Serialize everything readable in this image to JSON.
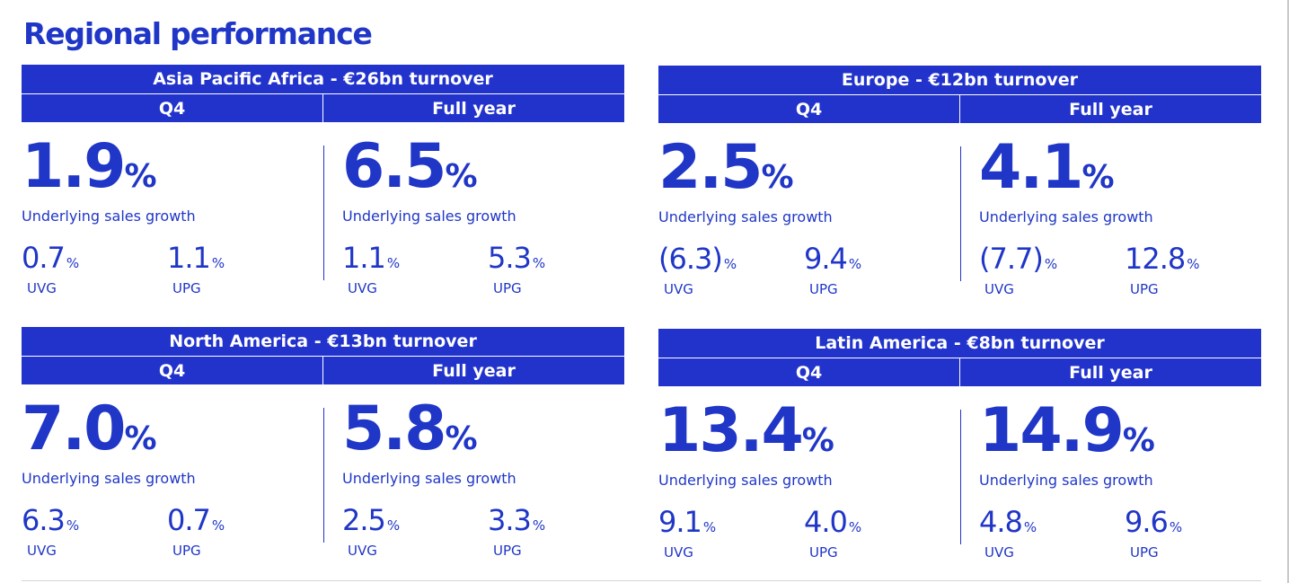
{
  "page_title": "Regional performance",
  "regions": [
    {
      "header": "Asia Pacific Africa - €26bn turnover",
      "columns": [
        {
          "period": "Q4",
          "growth": "1.9",
          "growth_label": "Underlying sales growth",
          "metrics": [
            {
              "value": "0.7",
              "label": "UVG"
            },
            {
              "value": "1.1",
              "label": "UPG"
            }
          ]
        },
        {
          "period": "Full year",
          "growth": "6.5",
          "growth_label": "Underlying sales growth",
          "metrics": [
            {
              "value": "1.1",
              "label": "UVG"
            },
            {
              "value": "5.3",
              "label": "UPG"
            }
          ]
        }
      ]
    },
    {
      "header": "Europe - €12bn turnover",
      "columns": [
        {
          "period": "Q4",
          "growth": "2.5",
          "growth_label": "Underlying sales growth",
          "metrics": [
            {
              "value": "(6.3)",
              "label": "UVG"
            },
            {
              "value": "9.4",
              "label": "UPG"
            }
          ]
        },
        {
          "period": "Full year",
          "growth": "4.1",
          "growth_label": "Underlying sales growth",
          "metrics": [
            {
              "value": "(7.7)",
              "label": "UVG"
            },
            {
              "value": "12.8",
              "label": "UPG"
            }
          ]
        }
      ]
    },
    {
      "header": "North America - €13bn turnover",
      "columns": [
        {
          "period": "Q4",
          "growth": "7.0",
          "growth_label": "Underlying sales growth",
          "metrics": [
            {
              "value": "6.3",
              "label": "UVG"
            },
            {
              "value": "0.7",
              "label": "UPG"
            }
          ]
        },
        {
          "period": "Full year",
          "growth": "5.8",
          "growth_label": "Underlying sales growth",
          "metrics": [
            {
              "value": "2.5",
              "label": "UVG"
            },
            {
              "value": "3.3",
              "label": "UPG"
            }
          ]
        }
      ]
    },
    {
      "header": "Latin America - €8bn turnover",
      "columns": [
        {
          "period": "Q4",
          "growth": "13.4",
          "growth_label": "Underlying sales growth",
          "metrics": [
            {
              "value": "9.1",
              "label": "UVG"
            },
            {
              "value": "4.0",
              "label": "UPG"
            }
          ]
        },
        {
          "period": "Full year",
          "growth": "14.9",
          "growth_label": "Underlying sales growth",
          "metrics": [
            {
              "value": "4.8",
              "label": "UVG"
            },
            {
              "value": "9.6",
              "label": "UPG"
            }
          ]
        }
      ]
    }
  ],
  "percent_sign": "%",
  "colors": {
    "brand_blue": "#1f36c7",
    "header_blue": "#2233cc"
  }
}
